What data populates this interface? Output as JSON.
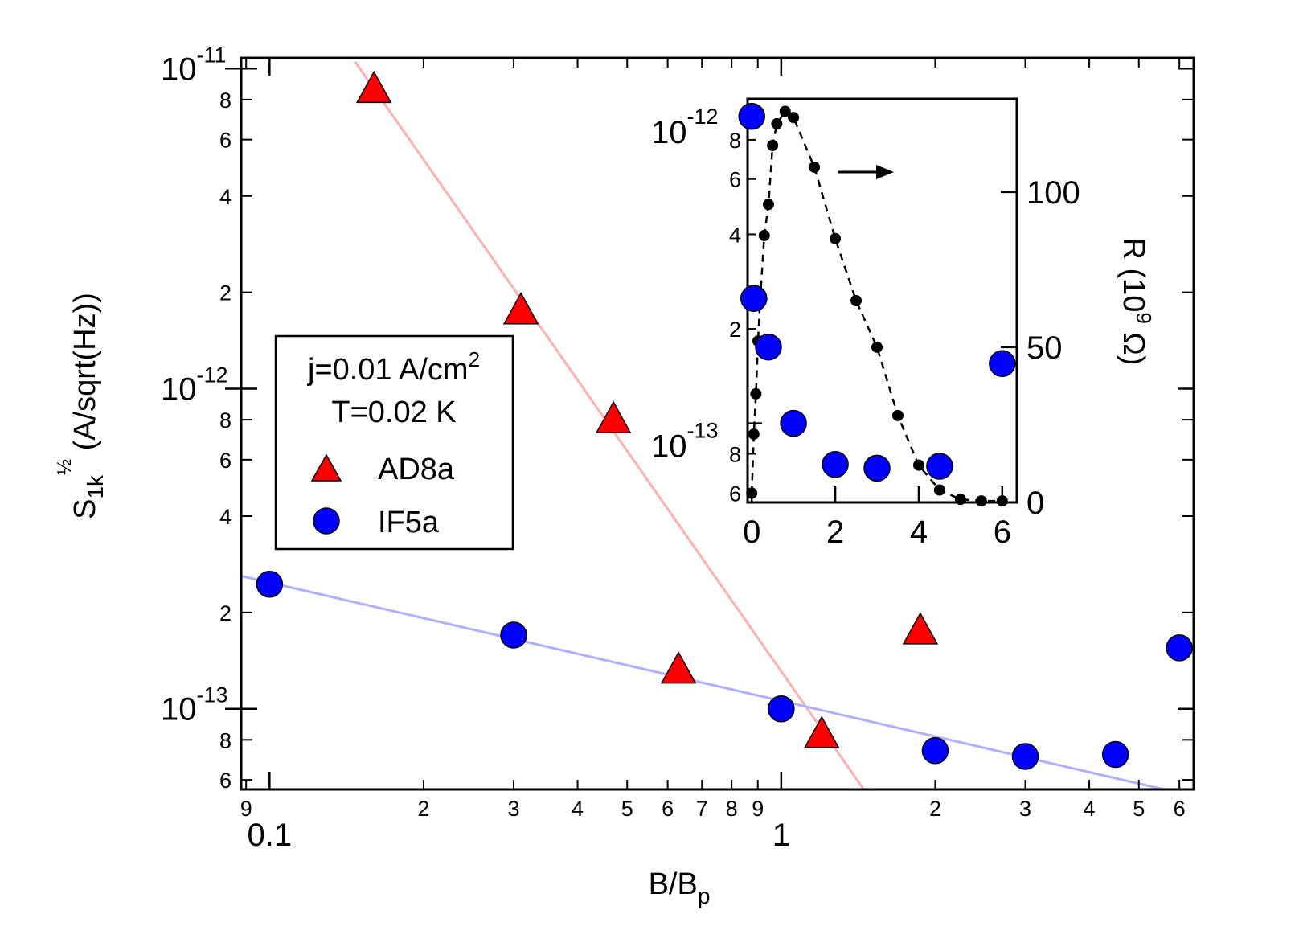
{
  "chart_data": [
    {
      "type": "scatter",
      "x_scale": "log",
      "y_scale": "log",
      "xlabel": "B/B",
      "xlabel_sub": "p",
      "ylabel_main": "S",
      "ylabel_sub": "1k",
      "ylabel_sup": "½",
      "ylabel_rest": " (A/sqrt(Hz))",
      "xlim": [
        0.088,
        6.4
      ],
      "ylim": [
        5.6e-14,
        1.08e-11
      ],
      "x_major_ticks": [
        {
          "v": 0.1,
          "label": "0.1"
        },
        {
          "v": 1,
          "label": "1"
        }
      ],
      "x_minor_ticks": [
        {
          "v": 0.09,
          "label": "9"
        },
        {
          "v": 0.2,
          "label": "2"
        },
        {
          "v": 0.3,
          "label": "3"
        },
        {
          "v": 0.4,
          "label": "4"
        },
        {
          "v": 0.5,
          "label": "5"
        },
        {
          "v": 0.6,
          "label": "6"
        },
        {
          "v": 0.7,
          "label": "7"
        },
        {
          "v": 0.8,
          "label": "8"
        },
        {
          "v": 0.9,
          "label": "9"
        },
        {
          "v": 2,
          "label": "2"
        },
        {
          "v": 3,
          "label": "3"
        },
        {
          "v": 4,
          "label": "4"
        },
        {
          "v": 5,
          "label": "5"
        },
        {
          "v": 6,
          "label": "6"
        }
      ],
      "y_major_ticks": [
        {
          "v": 1e-11,
          "base": "10",
          "exp": "-11"
        },
        {
          "v": 1e-12,
          "base": "10",
          "exp": "-12"
        },
        {
          "v": 1e-13,
          "base": "10",
          "exp": "-13"
        }
      ],
      "y_minor_ticks": [
        {
          "v": 8e-12,
          "label": "8"
        },
        {
          "v": 6e-12,
          "label": "6"
        },
        {
          "v": 4e-12,
          "label": "4"
        },
        {
          "v": 2e-12,
          "label": "2"
        },
        {
          "v": 8e-13,
          "label": "8"
        },
        {
          "v": 6e-13,
          "label": "6"
        },
        {
          "v": 4e-13,
          "label": "4"
        },
        {
          "v": 2e-13,
          "label": "2"
        },
        {
          "v": 8e-14,
          "label": "8"
        },
        {
          "v": 6e-14,
          "label": "6"
        }
      ],
      "series": [
        {
          "name": "AD8a",
          "marker": "triangle",
          "color": "#ff0000",
          "points": [
            [
              0.16,
              8.6e-12
            ],
            [
              0.31,
              1.75e-12
            ],
            [
              0.47,
              8e-13
            ],
            [
              0.63,
              1.32e-13
            ],
            [
              1.2,
              8.3e-14
            ],
            [
              1.87,
              1.75e-13
            ]
          ]
        },
        {
          "name": "IF5a",
          "marker": "circle",
          "color": "#0000ff",
          "points": [
            [
              0.1,
              2.45e-13
            ],
            [
              0.3,
              1.7e-13
            ],
            [
              1.0,
              1e-13
            ],
            [
              2.0,
              7.4e-14
            ],
            [
              3.0,
              7.1e-14
            ],
            [
              4.5,
              7.2e-14
            ],
            [
              6.0,
              1.55e-13
            ]
          ]
        }
      ],
      "fit_lines": [
        {
          "series": "AD8a",
          "color": "#ffb0b0",
          "points": [
            [
              0.147,
              1.05e-11
            ],
            [
              1.45,
              5.6e-14
            ]
          ]
        },
        {
          "series": "IF5a",
          "color": "#b0b0ff",
          "points": [
            [
              0.088,
              2.6e-13
            ],
            [
              5.6,
              5.6e-14
            ]
          ]
        }
      ],
      "legend": {
        "position": "center-left",
        "lines": [
          "j=0.01 A/cm",
          "T=0.02 K"
        ],
        "sup": "2",
        "entries": [
          {
            "label": "AD8a",
            "marker": "triangle",
            "color": "#ff0000"
          },
          {
            "label": "IF5a",
            "marker": "circle",
            "color": "#0000ff"
          }
        ]
      }
    },
    {
      "type": "scatter",
      "placement": "inset top-right",
      "x_scale": "linear",
      "xlim": [
        -0.1,
        6.35
      ],
      "x_ticks": [
        0,
        2,
        4,
        6
      ],
      "left_axis": {
        "scale": "log",
        "ylim": [
          5.6e-14,
          1.08e-12
        ],
        "major_ticks": [
          {
            "v": 1e-12,
            "base": "10",
            "exp": "-12"
          },
          {
            "v": 1e-13,
            "base": "10",
            "exp": "-13"
          }
        ],
        "minor_ticks": [
          {
            "v": 8e-13,
            "label": "8"
          },
          {
            "v": 6e-13,
            "label": "6"
          },
          {
            "v": 4e-13,
            "label": "4"
          },
          {
            "v": 2e-13,
            "label": "2"
          },
          {
            "v": 8e-14,
            "label": "8"
          },
          {
            "v": 6e-14,
            "label": "6"
          }
        ],
        "series": {
          "name": "IF5a",
          "marker": "circle",
          "color": "#0000ff",
          "points": [
            [
              0,
              9.5e-13
            ],
            [
              0.05,
              2.5e-13
            ],
            [
              0.4,
              1.75e-13
            ],
            [
              1.0,
              1e-13
            ],
            [
              2.0,
              7.4e-14
            ],
            [
              3.0,
              7.2e-14
            ],
            [
              4.5,
              7.3e-14
            ],
            [
              6.0,
              1.55e-13
            ]
          ]
        }
      },
      "right_axis": {
        "scale": "linear",
        "ylim": [
          0,
          130
        ],
        "ticks": [
          0,
          50,
          100
        ],
        "label_main": "R (10",
        "label_sup": "9",
        "label_rest": " Ω)",
        "series": {
          "name": "R",
          "marker": "dot",
          "color": "#000000",
          "line": "dashed",
          "points": [
            [
              0.0,
              3
            ],
            [
              0.05,
              22
            ],
            [
              0.1,
              35
            ],
            [
              0.15,
              52
            ],
            [
              0.2,
              65
            ],
            [
              0.3,
              86
            ],
            [
              0.4,
              96
            ],
            [
              0.5,
              115
            ],
            [
              0.6,
              122
            ],
            [
              0.8,
              126
            ],
            [
              1.0,
              124
            ],
            [
              1.5,
              108
            ],
            [
              2.0,
              85
            ],
            [
              2.5,
              65
            ],
            [
              3.0,
              50
            ],
            [
              3.5,
              28
            ],
            [
              4.0,
              12
            ],
            [
              4.5,
              4
            ],
            [
              5.0,
              1
            ],
            [
              5.5,
              0.5
            ],
            [
              6.0,
              0.5
            ]
          ]
        }
      },
      "annotation": "arrow pointing right to R axis"
    }
  ]
}
